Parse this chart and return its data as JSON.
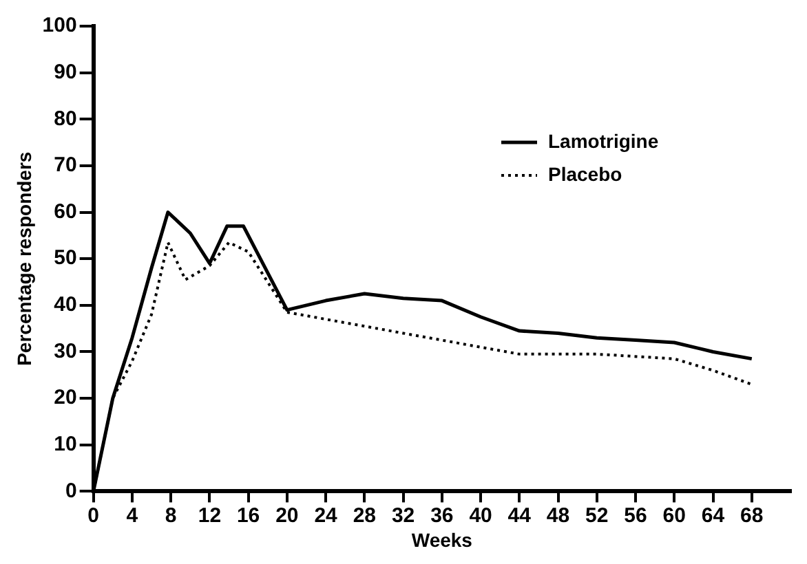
{
  "chart_data": {
    "type": "line",
    "xlabel": "Weeks",
    "ylabel": "Percentage responders",
    "xlim": [
      0,
      72
    ],
    "xticks": [
      0,
      4,
      8,
      12,
      16,
      20,
      24,
      28,
      32,
      36,
      40,
      44,
      48,
      52,
      56,
      60,
      64,
      68
    ],
    "ylim": [
      0,
      100
    ],
    "yticks": [
      0,
      10,
      20,
      30,
      40,
      50,
      60,
      70,
      80,
      90,
      100
    ],
    "legend": "right",
    "marker": "none",
    "series": [
      {
        "name": "Lamotrigine",
        "color": "#000000",
        "line_style": "solid",
        "x": [
          0,
          2,
          4,
          6,
          7.7,
          10,
          12,
          13.8,
          15.5,
          20,
          24,
          28,
          32,
          36,
          40,
          44,
          48,
          52,
          56,
          60,
          64,
          68
        ],
        "values": [
          0,
          20,
          33,
          48,
          60,
          55.5,
          49,
          57,
          57,
          39,
          41,
          42.5,
          41.5,
          41,
          37.5,
          34.5,
          34,
          33,
          32.5,
          32,
          30,
          28.5
        ]
      },
      {
        "name": "Placebo",
        "color": "#000000",
        "line_style": "dotted",
        "x": [
          0,
          2,
          4,
          6,
          7.7,
          9.5,
          12,
          14,
          16,
          20,
          24,
          28,
          32,
          36,
          40,
          44,
          52,
          60,
          64,
          68
        ],
        "values": [
          0,
          20,
          28,
          38,
          53.5,
          45.5,
          48.5,
          53.5,
          51.5,
          38.5,
          37,
          35.5,
          34,
          32.5,
          31,
          29.5,
          29.5,
          28.5,
          26,
          23
        ]
      }
    ]
  }
}
